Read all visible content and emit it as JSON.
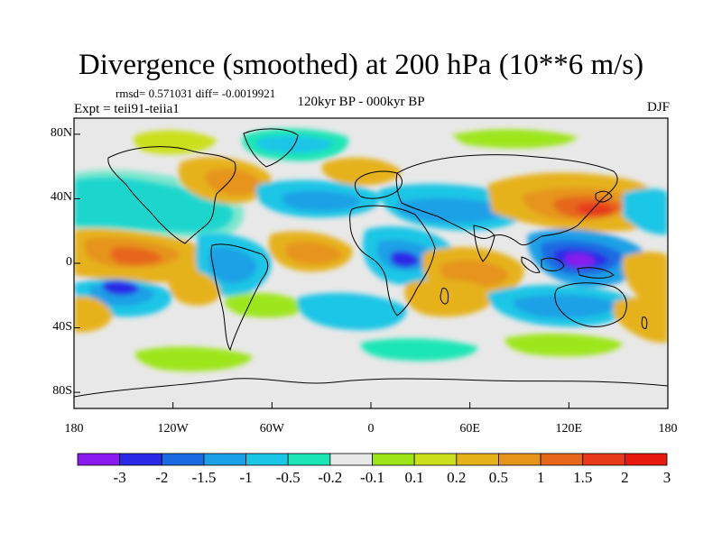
{
  "title": "Divergence (smoothed) at 200 hPa (10**6 m/s)",
  "stats": "rmsd= 0.571031 diff= -0.0019921",
  "experiment": "Expt = teii91-teiia1",
  "period": "120kyr BP - 000kyr BP",
  "season": "DJF",
  "map": {
    "projection": "cylindrical equidistant",
    "lon_range": [
      -180,
      180
    ],
    "lat_range": [
      -90,
      90
    ],
    "y_ticks": [
      {
        "label": "80N",
        "lat": 80
      },
      {
        "label": "40N",
        "lat": 40
      },
      {
        "label": "0",
        "lat": 0
      },
      {
        "label": "40S",
        "lat": -40
      },
      {
        "label": "80S",
        "lat": -80
      }
    ],
    "x_ticks": [
      {
        "label": "180",
        "lon": -180
      },
      {
        "label": "120W",
        "lon": -120
      },
      {
        "label": "60W",
        "lon": -60
      },
      {
        "label": "0",
        "lon": 0
      },
      {
        "label": "60E",
        "lon": 60
      },
      {
        "label": "120E",
        "lon": 120
      },
      {
        "label": "180",
        "lon": 180
      }
    ],
    "background_color": "#e8e8e8"
  },
  "colorbar": {
    "colors": [
      "#8a1aef",
      "#2a2ae6",
      "#1a6ae2",
      "#1aa0e6",
      "#1ac6e6",
      "#1ae6b6",
      "#e8e8e8",
      "#9ee61a",
      "#cbe01a",
      "#e6b21a",
      "#e6941a",
      "#e6661a",
      "#e63a1a",
      "#e81a10"
    ],
    "labels": [
      "-3",
      "-2",
      "-1.5",
      "-1",
      "-0.5",
      "-0.2",
      "-0.1",
      "0.1",
      "0.2",
      "0.5",
      "1",
      "1.5",
      "2",
      "3"
    ]
  }
}
